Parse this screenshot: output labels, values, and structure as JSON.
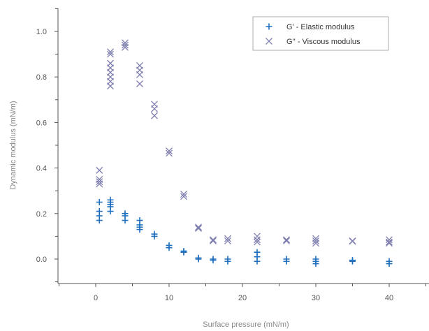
{
  "chart_data": {
    "type": "scatter",
    "xlabel": "Surface pressure (mN/m)",
    "ylabel": "Dynamic modulus (mN/m)",
    "xlim": [
      -5,
      45
    ],
    "ylim": [
      -0.1,
      1.1
    ],
    "xticks": [
      0,
      10,
      20,
      30,
      40
    ],
    "yticks": [
      0.0,
      0.2,
      0.4,
      0.6,
      0.8,
      1.0
    ],
    "ytick_labels": [
      "0.0",
      "0.2",
      "0.4",
      "0.6",
      "0.8",
      "1.0"
    ],
    "grid": false,
    "legend_position": "top-right",
    "series": [
      {
        "name": "G' - Elastic modulus",
        "marker": "plus",
        "color": "#1f6fbf",
        "points": [
          [
            0.5,
            0.25
          ],
          [
            0.5,
            0.21
          ],
          [
            0.5,
            0.19
          ],
          [
            0.5,
            0.17
          ],
          [
            2,
            0.26
          ],
          [
            2,
            0.25
          ],
          [
            2,
            0.24
          ],
          [
            2,
            0.23
          ],
          [
            2,
            0.21
          ],
          [
            4,
            0.2
          ],
          [
            4,
            0.19
          ],
          [
            4,
            0.17
          ],
          [
            6,
            0.17
          ],
          [
            6,
            0.15
          ],
          [
            6,
            0.14
          ],
          [
            6,
            0.13
          ],
          [
            8,
            0.11
          ],
          [
            8,
            0.1
          ],
          [
            10,
            0.06
          ],
          [
            10,
            0.05
          ],
          [
            12,
            0.035
          ],
          [
            12,
            0.03
          ],
          [
            14,
            0.005
          ],
          [
            14,
            0.0
          ],
          [
            16,
            0.0
          ],
          [
            16,
            -0.005
          ],
          [
            18,
            0.0
          ],
          [
            18,
            -0.01
          ],
          [
            22,
            0.03
          ],
          [
            22,
            0.01
          ],
          [
            22,
            -0.01
          ],
          [
            26,
            0.0
          ],
          [
            26,
            -0.01
          ],
          [
            30,
            0.0
          ],
          [
            30,
            -0.01
          ],
          [
            30,
            -0.02
          ],
          [
            35,
            -0.005
          ],
          [
            35,
            -0.01
          ],
          [
            40,
            -0.01
          ],
          [
            40,
            -0.02
          ]
        ]
      },
      {
        "name": "G'' - Viscous modulus",
        "marker": "cross",
        "color": "#7f7fb0",
        "points": [
          [
            0.5,
            0.39
          ],
          [
            0.5,
            0.35
          ],
          [
            0.5,
            0.34
          ],
          [
            0.5,
            0.33
          ],
          [
            2,
            0.91
          ],
          [
            2,
            0.9
          ],
          [
            2,
            0.86
          ],
          [
            2,
            0.84
          ],
          [
            2,
            0.82
          ],
          [
            2,
            0.8
          ],
          [
            2,
            0.78
          ],
          [
            2,
            0.76
          ],
          [
            4,
            0.95
          ],
          [
            4,
            0.94
          ],
          [
            4,
            0.93
          ],
          [
            6,
            0.85
          ],
          [
            6,
            0.83
          ],
          [
            6,
            0.81
          ],
          [
            6,
            0.77
          ],
          [
            8,
            0.68
          ],
          [
            8,
            0.66
          ],
          [
            8,
            0.63
          ],
          [
            10,
            0.475
          ],
          [
            10,
            0.465
          ],
          [
            12,
            0.285
          ],
          [
            12,
            0.275
          ],
          [
            14,
            0.14
          ],
          [
            14,
            0.135
          ],
          [
            16,
            0.085
          ],
          [
            16,
            0.08
          ],
          [
            18,
            0.09
          ],
          [
            18,
            0.08
          ],
          [
            22,
            0.1
          ],
          [
            22,
            0.085
          ],
          [
            22,
            0.075
          ],
          [
            26,
            0.085
          ],
          [
            26,
            0.08
          ],
          [
            30,
            0.09
          ],
          [
            30,
            0.08
          ],
          [
            30,
            0.07
          ],
          [
            35,
            0.08
          ],
          [
            35,
            0.078
          ],
          [
            40,
            0.085
          ],
          [
            40,
            0.075
          ],
          [
            40,
            0.07
          ]
        ]
      }
    ]
  }
}
